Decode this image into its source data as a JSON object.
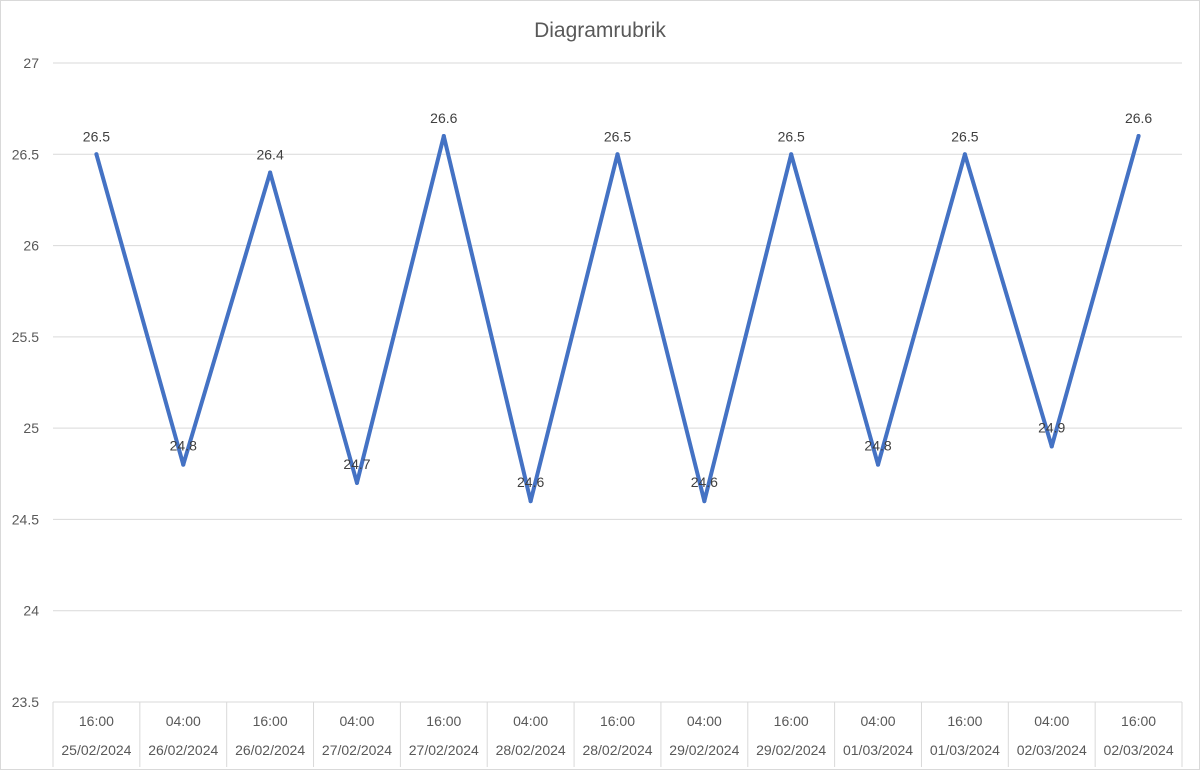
{
  "chart_data": {
    "type": "line",
    "title": "Diagramrubrik",
    "xlabel": "",
    "ylabel": "",
    "ylim": [
      23.5,
      27
    ],
    "yticks": [
      "23.5",
      "24",
      "24.5",
      "25",
      "25.5",
      "26",
      "26.5",
      "27"
    ],
    "grid": true,
    "legend": "none",
    "colors": {
      "series": "#4472c4",
      "grid": "#d9d9d9",
      "text": "#595959"
    },
    "categories": [
      {
        "time": "16:00",
        "date": "25/02/2024"
      },
      {
        "time": "04:00",
        "date": "26/02/2024"
      },
      {
        "time": "16:00",
        "date": "26/02/2024"
      },
      {
        "time": "04:00",
        "date": "27/02/2024"
      },
      {
        "time": "16:00",
        "date": "27/02/2024"
      },
      {
        "time": "04:00",
        "date": "28/02/2024"
      },
      {
        "time": "16:00",
        "date": "28/02/2024"
      },
      {
        "time": "04:00",
        "date": "29/02/2024"
      },
      {
        "time": "16:00",
        "date": "29/02/2024"
      },
      {
        "time": "04:00",
        "date": "01/03/2024"
      },
      {
        "time": "16:00",
        "date": "01/03/2024"
      },
      {
        "time": "04:00",
        "date": "02/03/2024"
      },
      {
        "time": "16:00",
        "date": "02/03/2024"
      }
    ],
    "series": [
      {
        "values": [
          26.5,
          24.8,
          26.4,
          24.7,
          26.6,
          24.6,
          26.5,
          24.6,
          26.5,
          24.8,
          26.5,
          24.9,
          26.6
        ],
        "data_labels": [
          "26.5",
          "24.8",
          "26.4",
          "24.7",
          "26.6",
          "24.6",
          "26.5",
          "24.6",
          "26.5",
          "24.8",
          "26.5",
          "24.9",
          "26.6"
        ]
      }
    ]
  }
}
